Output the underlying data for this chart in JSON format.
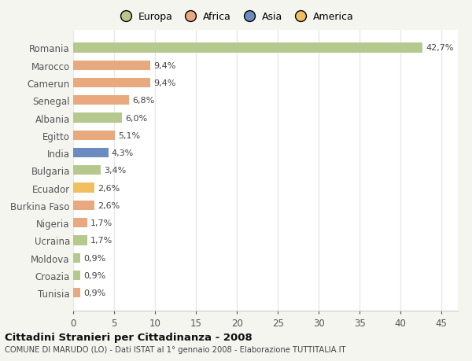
{
  "countries": [
    "Romania",
    "Marocco",
    "Camerun",
    "Senegal",
    "Albania",
    "Egitto",
    "India",
    "Bulgaria",
    "Ecuador",
    "Burkina Faso",
    "Nigeria",
    "Ucraina",
    "Moldova",
    "Croazia",
    "Tunisia"
  ],
  "values": [
    42.7,
    9.4,
    9.4,
    6.8,
    6.0,
    5.1,
    4.3,
    3.4,
    2.6,
    2.6,
    1.7,
    1.7,
    0.9,
    0.9,
    0.9
  ],
  "labels": [
    "42,7%",
    "9,4%",
    "9,4%",
    "6,8%",
    "6,0%",
    "5,1%",
    "4,3%",
    "3,4%",
    "2,6%",
    "2,6%",
    "1,7%",
    "1,7%",
    "0,9%",
    "0,9%",
    "0,9%"
  ],
  "colors": [
    "#b5c98e",
    "#e8a97e",
    "#e8a97e",
    "#e8a97e",
    "#b5c98e",
    "#e8a97e",
    "#6b8cbf",
    "#b5c98e",
    "#f0c060",
    "#e8a97e",
    "#e8a97e",
    "#b5c98e",
    "#b5c98e",
    "#b5c98e",
    "#e8a97e"
  ],
  "legend_labels": [
    "Europa",
    "Africa",
    "Asia",
    "America"
  ],
  "legend_colors": [
    "#b5c98e",
    "#e8a97e",
    "#6b8cbf",
    "#f0c060"
  ],
  "title": "Cittadini Stranieri per Cittadinanza - 2008",
  "subtitle": "COMUNE DI MARUDO (LO) - Dati ISTAT al 1° gennaio 2008 - Elaborazione TUTTITALIA.IT",
  "xlim": [
    0,
    47
  ],
  "xticks": [
    0,
    5,
    10,
    15,
    20,
    25,
    30,
    35,
    40,
    45
  ],
  "bg_color": "#f5f5f0",
  "plot_bg_color": "#ffffff",
  "grid_color": "#e8e8e8"
}
